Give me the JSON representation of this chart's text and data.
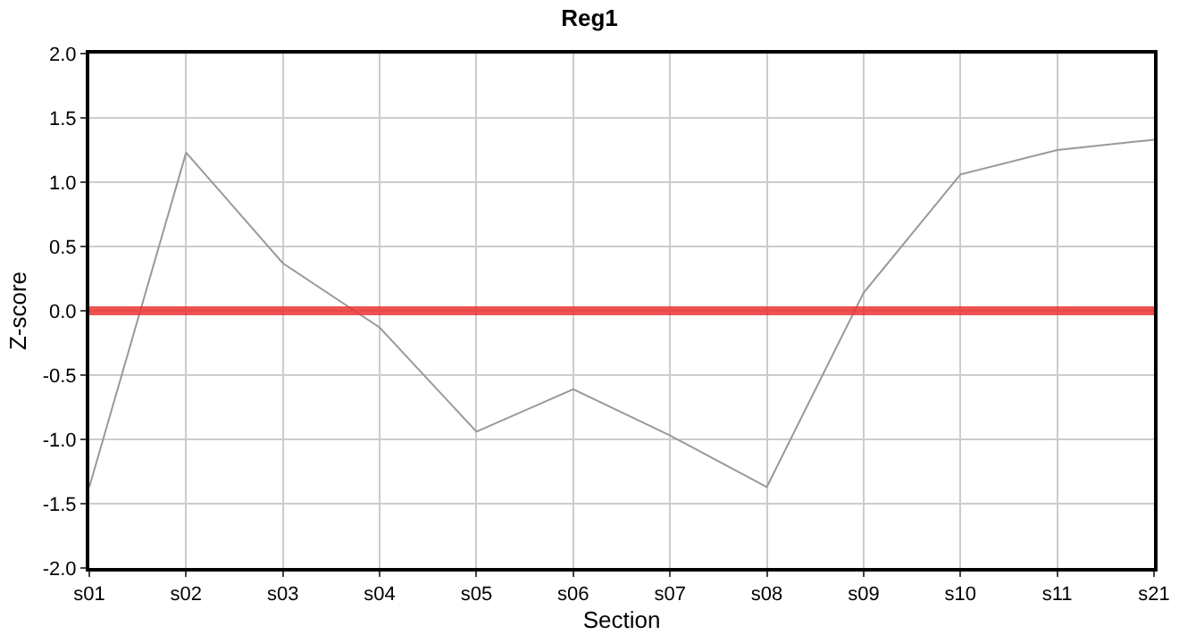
{
  "chart_data": {
    "type": "line",
    "title": "Reg1",
    "xlabel": "Section",
    "ylabel": "Z-score",
    "categories": [
      "s01",
      "s02",
      "s03",
      "s04",
      "s05",
      "s06",
      "s07",
      "s08",
      "s09",
      "s10",
      "s11",
      "s21"
    ],
    "series": [
      {
        "color": "#999999",
        "values": [
          -1.37,
          1.23,
          0.37,
          -0.13,
          -0.94,
          -0.61,
          -0.97,
          -1.37,
          0.14,
          1.06,
          1.25,
          1.33
        ]
      }
    ],
    "ylim": [
      -2,
      2
    ],
    "yticks": [
      {
        "value": -2,
        "label": "-2.0"
      },
      {
        "value": -1.5,
        "label": "-1.5"
      },
      {
        "value": -1,
        "label": "-1.0"
      },
      {
        "value": -0.5,
        "label": "-0.5"
      },
      {
        "value": 0,
        "label": "0.0"
      },
      {
        "value": 0.5,
        "label": "0.5"
      },
      {
        "value": 1,
        "label": "1.0"
      },
      {
        "value": 1.5,
        "label": "1.5"
      },
      {
        "value": 2,
        "label": "2.0"
      }
    ],
    "ref_lines": [
      {
        "axis": "y",
        "value": 0,
        "color": "#ee3333"
      }
    ],
    "grid": true,
    "marker": "none",
    "line_style": "solid"
  }
}
